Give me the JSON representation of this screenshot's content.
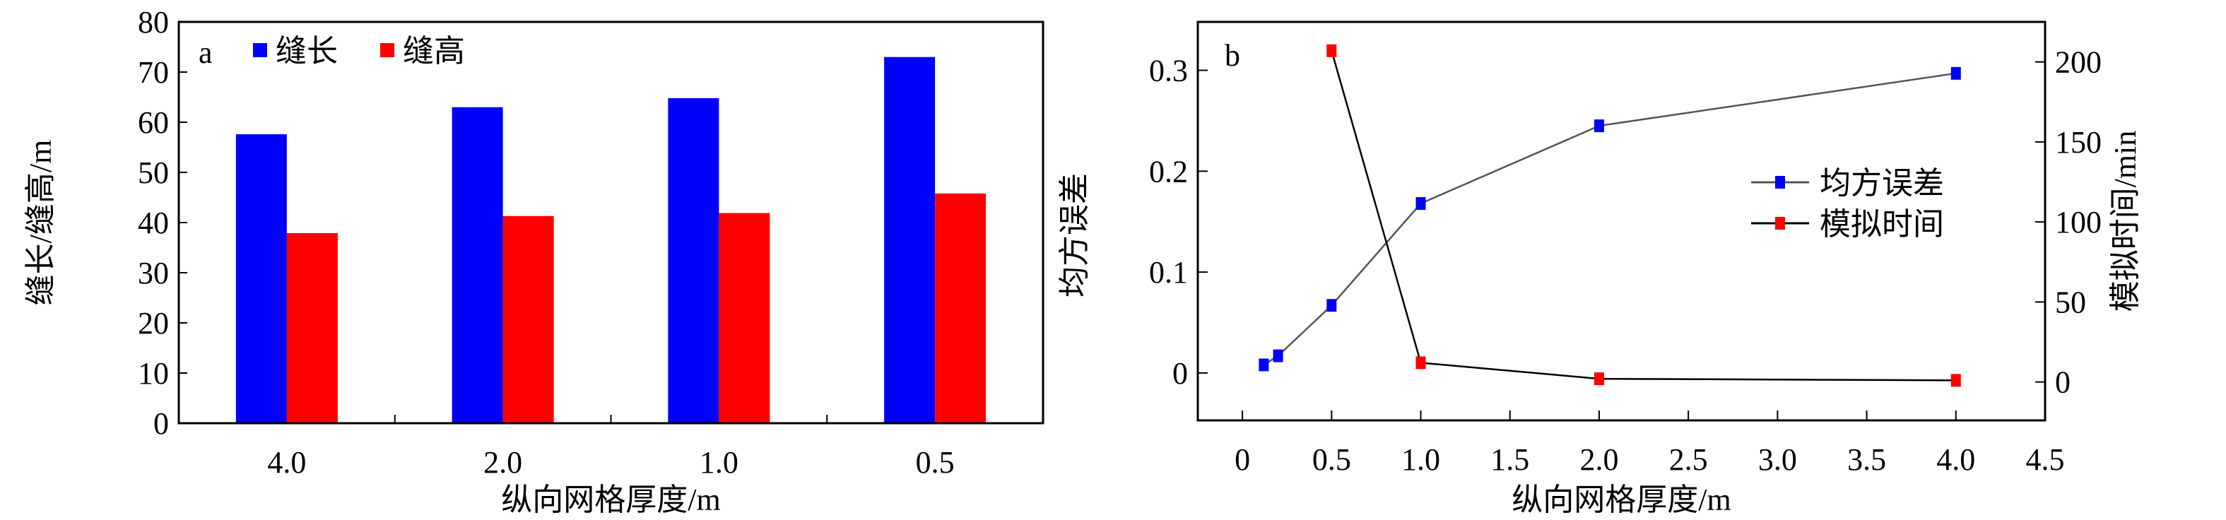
{
  "chart_data": [
    {
      "type": "bar",
      "panel_label": "a",
      "categories": [
        "4.0",
        "2.0",
        "1.0",
        "0.5"
      ],
      "series": [
        {
          "name": "缝长",
          "color": "#0000ff",
          "values": [
            57.6,
            63.0,
            64.8,
            73.0
          ]
        },
        {
          "name": "缝高",
          "color": "#ff0000",
          "values": [
            37.9,
            41.3,
            41.9,
            45.8
          ]
        }
      ],
      "xlabel": "纵向网格厚度/m",
      "ylabel": "缝长/缝高/m",
      "ylim": [
        0,
        80
      ],
      "yticks": [
        "0",
        "10",
        "20",
        "30",
        "40",
        "50",
        "60",
        "70",
        "80"
      ],
      "legend": "top-left",
      "grid": false
    },
    {
      "type": "line",
      "panel_label": "b",
      "xlabel": "纵向网格厚度/m",
      "ylabel_left": "均方误差",
      "ylabel_right": "模拟时间/min",
      "xlim": [
        -0.25,
        4.5
      ],
      "ylim_left": [
        -0.047,
        0.348
      ],
      "ylim_right": [
        -24,
        225
      ],
      "xticks": [
        "0",
        "0.5",
        "1.0",
        "1.5",
        "2.0",
        "2.5",
        "3.0",
        "3.5",
        "4.0",
        "4.5"
      ],
      "yticks_left": [
        "0",
        "0.1",
        "0.2",
        "0.3"
      ],
      "yticks_right": [
        "0",
        "50",
        "100",
        "150",
        "200"
      ],
      "legend": "center-right",
      "grid": false,
      "series": [
        {
          "name": "均方误差",
          "axis": "left",
          "color": "#0000ff",
          "line_color": "#555555",
          "x": [
            0.12,
            0.2,
            0.5,
            1.0,
            2.0,
            4.0
          ],
          "y": [
            0.008,
            0.017,
            0.067,
            0.168,
            0.245,
            0.297
          ]
        },
        {
          "name": "模拟时间",
          "axis": "right",
          "color": "#ff0000",
          "line_color": "#000000",
          "x": [
            0.5,
            1.0,
            2.0,
            4.0
          ],
          "y": [
            207,
            12,
            2,
            1
          ]
        }
      ]
    }
  ]
}
